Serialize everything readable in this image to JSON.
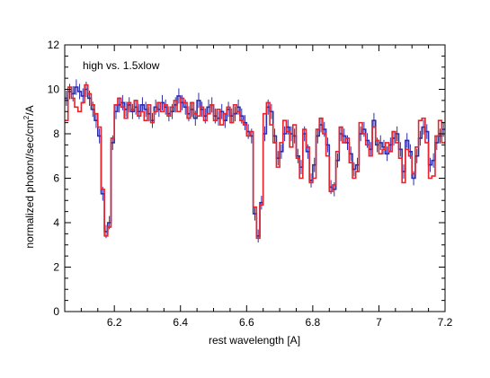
{
  "chart_data": {
    "type": "line",
    "xlabel": "rest wavelength [A]",
    "ylabel": "normalized photon//sec/cm2/A",
    "ylabel_main": "normalized photon//sec/cm",
    "ylabel_sup": "2",
    "ylabel_tail": "/A",
    "annotation": "high vs. 1.5xlow",
    "xlim": [
      6.05,
      7.2
    ],
    "ylim": [
      0,
      12
    ],
    "x_ticks": [
      6.2,
      6.4,
      6.6,
      6.8,
      7,
      7.2
    ],
    "x_tick_labels": [
      "6.2",
      "6.4",
      "6.6",
      "6.8",
      "7",
      "7.2"
    ],
    "y_ticks": [
      0,
      2,
      4,
      6,
      8,
      10,
      12
    ],
    "y_tick_labels": [
      "0",
      "2",
      "4",
      "6",
      "8",
      "10",
      "12"
    ],
    "grid": false,
    "series": [
      {
        "color": "#2e2ea8",
        "style": "step-with-errorbars",
        "x": [
          6.05,
          6.06,
          6.07,
          6.08,
          6.09,
          6.1,
          6.11,
          6.12,
          6.13,
          6.14,
          6.15,
          6.16,
          6.17,
          6.18,
          6.19,
          6.2,
          6.21,
          6.22,
          6.23,
          6.24,
          6.25,
          6.26,
          6.27,
          6.28,
          6.29,
          6.3,
          6.31,
          6.32,
          6.33,
          6.34,
          6.35,
          6.36,
          6.37,
          6.38,
          6.39,
          6.4,
          6.41,
          6.42,
          6.43,
          6.44,
          6.45,
          6.46,
          6.47,
          6.48,
          6.49,
          6.5,
          6.51,
          6.52,
          6.53,
          6.54,
          6.55,
          6.56,
          6.57,
          6.58,
          6.59,
          6.6,
          6.61,
          6.62,
          6.63,
          6.64,
          6.65,
          6.66,
          6.67,
          6.68,
          6.69,
          6.7,
          6.71,
          6.72,
          6.73,
          6.74,
          6.75,
          6.76,
          6.77,
          6.78,
          6.79,
          6.8,
          6.81,
          6.82,
          6.83,
          6.84,
          6.85,
          6.86,
          6.87,
          6.88,
          6.89,
          6.9,
          6.91,
          6.92,
          6.93,
          6.94,
          6.95,
          6.96,
          6.97,
          6.98,
          6.99,
          7,
          7.01,
          7.02,
          7.03,
          7.04,
          7.05,
          7.06,
          7.07,
          7.08,
          7.09,
          7.1,
          7.11,
          7.12,
          7.13,
          7.14,
          7.15,
          7.16,
          7.17,
          7.18,
          7.19
        ],
        "y": [
          9.6,
          9.9,
          9.8,
          10.1,
          9.9,
          9.7,
          10.0,
          9.6,
          9.1,
          8.6,
          7.9,
          5.3,
          3.6,
          4.0,
          7.6,
          9.0,
          9.3,
          9.4,
          9.1,
          9.3,
          9.0,
          9.2,
          9.0,
          9.3,
          9.1,
          8.9,
          8.6,
          9.2,
          9.1,
          9.4,
          9.2,
          8.9,
          9.0,
          9.3,
          9.7,
          9.4,
          9.2,
          8.9,
          9.1,
          8.7,
          9.5,
          9.1,
          8.8,
          9.2,
          9.3,
          8.8,
          8.7,
          9.0,
          8.6,
          9.1,
          8.8,
          8.9,
          9.2,
          8.8,
          8.5,
          8.1,
          7.9,
          4.4,
          3.4,
          4.9,
          8.0,
          9.2,
          9.0,
          7.9,
          6.9,
          7.2,
          8.0,
          8.3,
          8.0,
          7.9,
          7.0,
          6.5,
          8.0,
          7.2,
          5.9,
          6.6,
          7.9,
          8.4,
          8.2,
          7.5,
          5.6,
          5.5,
          6.8,
          8.0,
          7.9,
          7.6,
          7.1,
          6.4,
          6.6,
          8.0,
          8.2,
          7.7,
          7.3,
          8.6,
          7.5,
          7.6,
          7.4,
          7.1,
          7.5,
          7.8,
          8.0,
          7.3,
          6.3,
          7.7,
          7.2,
          6.0,
          7.0,
          7.8,
          8.3,
          8.1,
          6.6,
          6.8,
          7.6,
          7.9,
          8.2
        ]
      },
      {
        "color": "#e8232c",
        "style": "step",
        "x": [
          6.05,
          6.06,
          6.07,
          6.08,
          6.09,
          6.1,
          6.11,
          6.12,
          6.13,
          6.14,
          6.15,
          6.16,
          6.17,
          6.18,
          6.19,
          6.2,
          6.21,
          6.22,
          6.23,
          6.24,
          6.25,
          6.26,
          6.27,
          6.28,
          6.29,
          6.3,
          6.31,
          6.32,
          6.33,
          6.34,
          6.35,
          6.36,
          6.37,
          6.38,
          6.39,
          6.4,
          6.41,
          6.42,
          6.43,
          6.44,
          6.45,
          6.46,
          6.47,
          6.48,
          6.49,
          6.5,
          6.51,
          6.52,
          6.53,
          6.54,
          6.55,
          6.56,
          6.57,
          6.58,
          6.59,
          6.6,
          6.61,
          6.62,
          6.63,
          6.64,
          6.65,
          6.66,
          6.67,
          6.68,
          6.69,
          6.7,
          6.71,
          6.72,
          6.73,
          6.74,
          6.75,
          6.76,
          6.77,
          6.78,
          6.79,
          6.8,
          6.81,
          6.82,
          6.83,
          6.84,
          6.85,
          6.86,
          6.87,
          6.88,
          6.89,
          6.9,
          6.91,
          6.92,
          6.93,
          6.94,
          6.95,
          6.96,
          6.97,
          6.98,
          6.99,
          7,
          7.01,
          7.02,
          7.03,
          7.04,
          7.05,
          7.06,
          7.07,
          7.08,
          7.09,
          7.1,
          7.11,
          7.12,
          7.13,
          7.14,
          7.15,
          7.16,
          7.17,
          7.18,
          7.19
        ],
        "y": [
          8.6,
          10.1,
          9.6,
          9.2,
          9.0,
          9.4,
          10.2,
          9.8,
          9.3,
          8.9,
          8.3,
          5.5,
          3.4,
          3.8,
          7.8,
          9.3,
          9.6,
          9.2,
          8.7,
          9.4,
          9.1,
          9.5,
          8.8,
          9.0,
          8.6,
          9.3,
          8.5,
          9.0,
          9.4,
          9.0,
          9.3,
          8.8,
          9.2,
          9.5,
          9.0,
          9.6,
          9.4,
          8.7,
          9.4,
          8.9,
          8.8,
          9.2,
          8.6,
          8.9,
          9.3,
          8.6,
          9.1,
          8.4,
          8.9,
          9.2,
          8.5,
          9.3,
          9.0,
          8.6,
          8.4,
          7.9,
          8.1,
          4.7,
          3.3,
          4.8,
          8.9,
          9.4,
          8.4,
          7.6,
          6.5,
          7.6,
          8.6,
          8.1,
          7.4,
          8.4,
          6.9,
          6.0,
          8.2,
          7.4,
          5.8,
          6.0,
          8.2,
          8.7,
          8.0,
          7.0,
          5.4,
          5.7,
          7.2,
          8.3,
          7.6,
          7.8,
          6.7,
          6.0,
          6.3,
          8.5,
          8.0,
          7.5,
          7.0,
          8.3,
          7.7,
          7.1,
          7.3,
          7.6,
          7.2,
          8.1,
          7.6,
          6.9,
          5.8,
          7.3,
          7.0,
          6.2,
          7.4,
          8.6,
          8.7,
          7.6,
          6.0,
          6.1,
          7.9,
          8.6,
          7.6
        ]
      }
    ]
  }
}
